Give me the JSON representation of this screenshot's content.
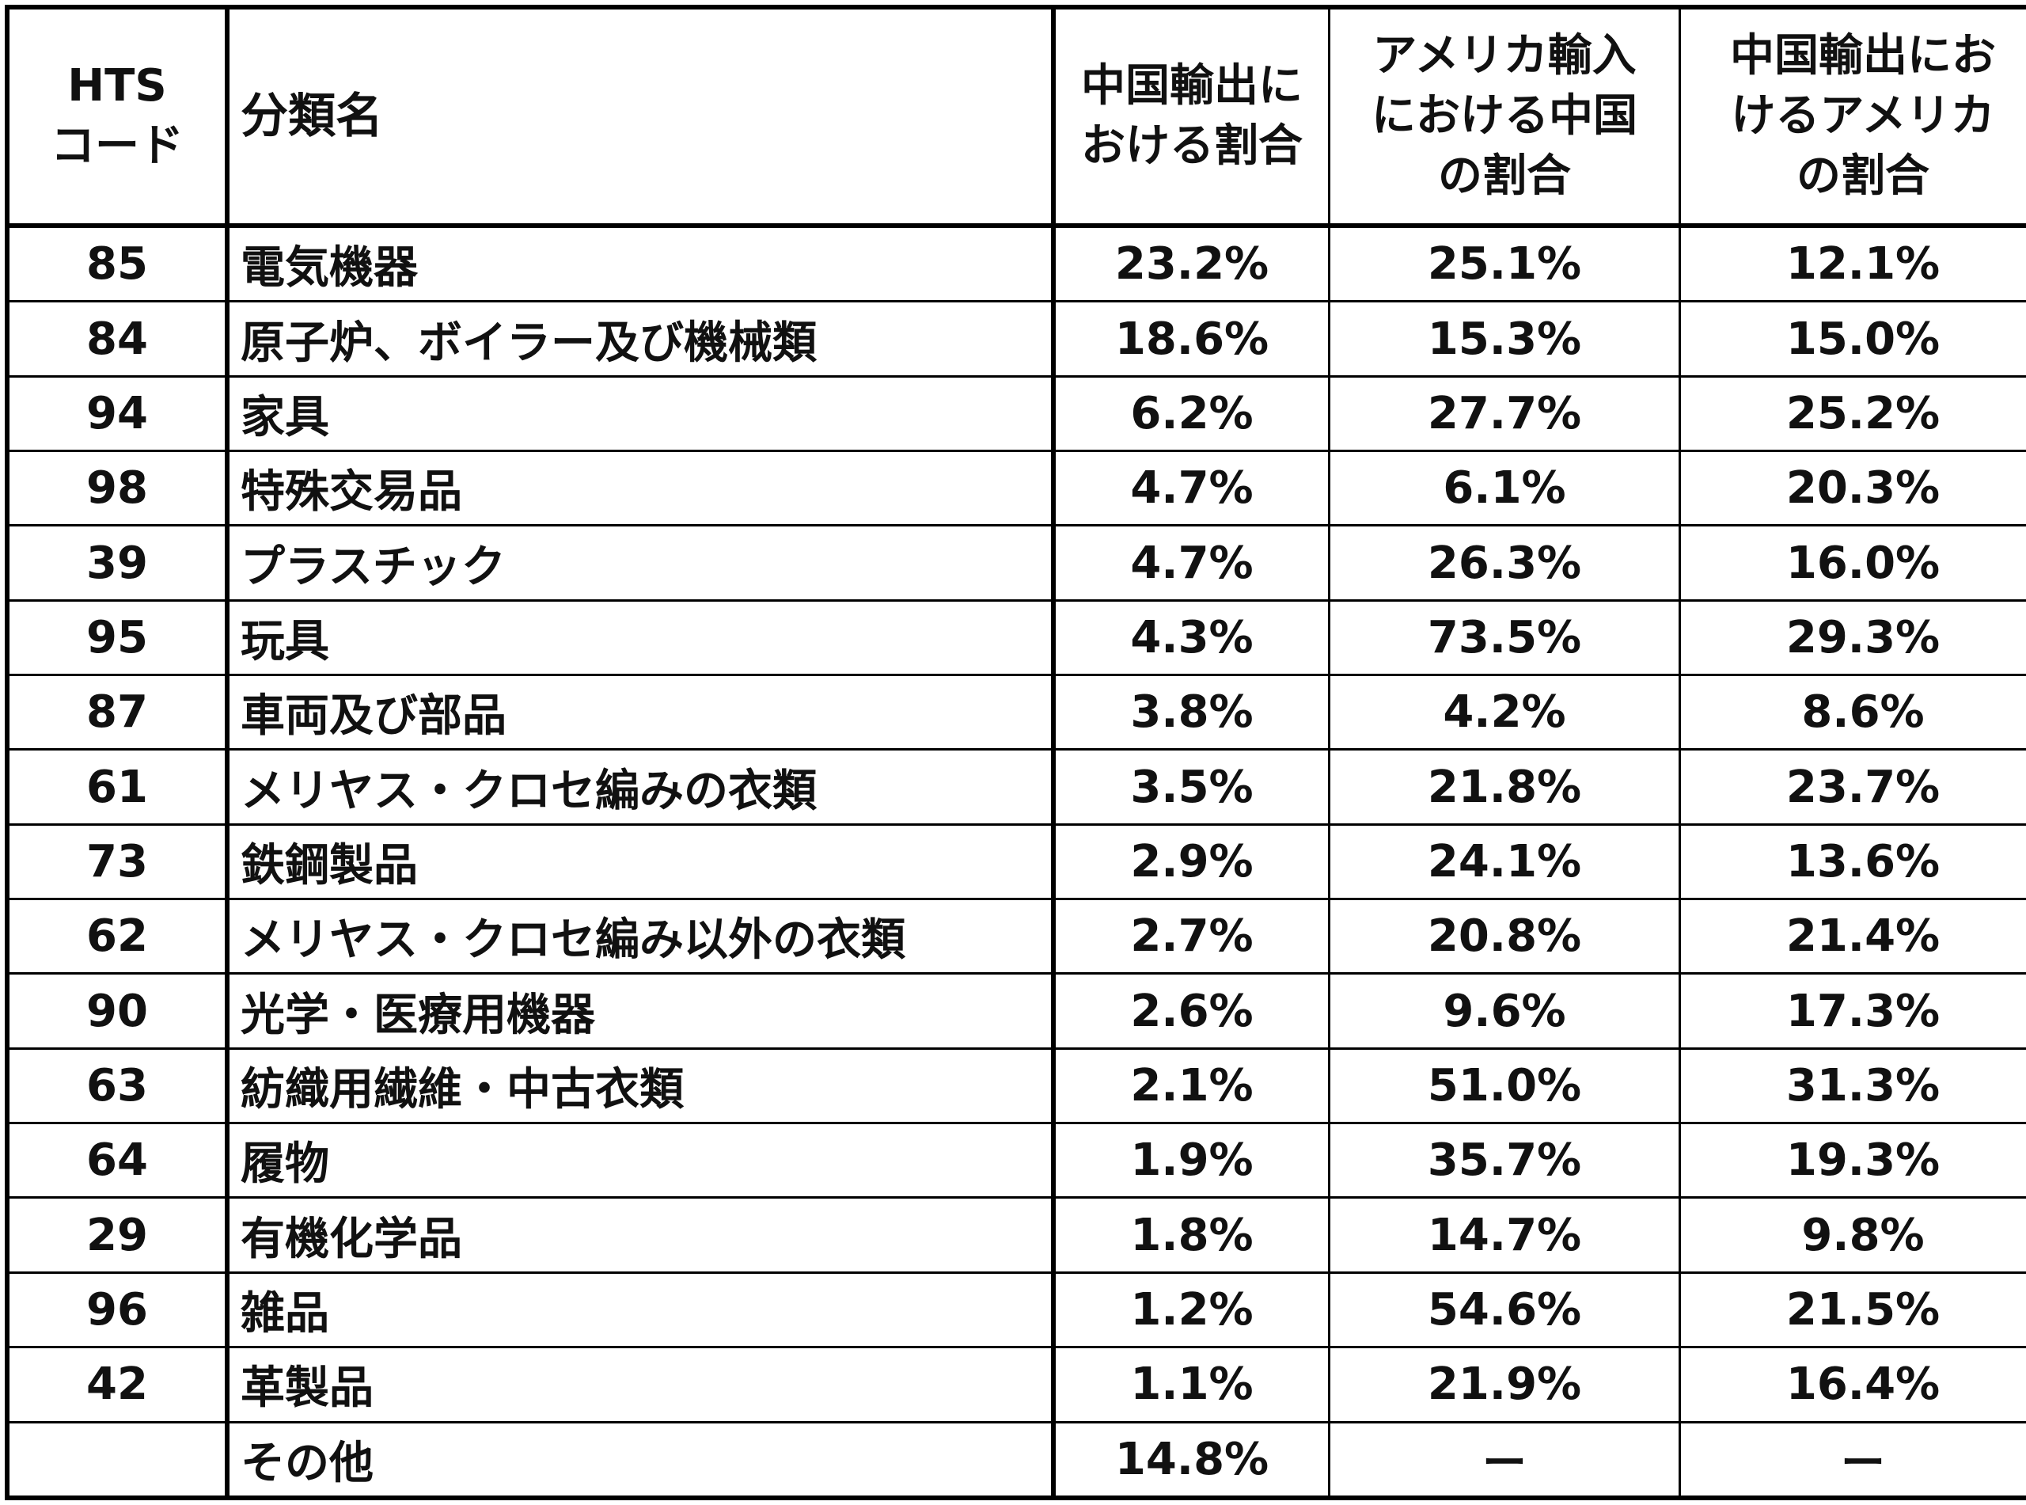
{
  "headers": {
    "code": [
      "HTS",
      "コード"
    ],
    "name": "分類名",
    "col3": [
      "中国輸出に",
      "おける割合"
    ],
    "col4": [
      "アメリカ輸入",
      "における中国",
      "の割合"
    ],
    "col5": [
      "中国輸出にお",
      "けるアメリカ",
      "の割合"
    ]
  },
  "rows": [
    {
      "code": "85",
      "name": "電気機器",
      "c3": "23.2%",
      "c4": "25.1%",
      "c5": "12.1%"
    },
    {
      "code": "84",
      "name": "原子炉、ボイラー及び機械類",
      "c3": "18.6%",
      "c4": "15.3%",
      "c5": "15.0%"
    },
    {
      "code": "94",
      "name": "家具",
      "c3": "6.2%",
      "c4": "27.7%",
      "c5": "25.2%"
    },
    {
      "code": "98",
      "name": "特殊交易品",
      "c3": "4.7%",
      "c4": "6.1%",
      "c5": "20.3%"
    },
    {
      "code": "39",
      "name": "プラスチック",
      "c3": "4.7%",
      "c4": "26.3%",
      "c5": "16.0%"
    },
    {
      "code": "95",
      "name": "玩具",
      "c3": "4.3%",
      "c4": "73.5%",
      "c5": "29.3%"
    },
    {
      "code": "87",
      "name": "車両及び部品",
      "c3": "3.8%",
      "c4": "4.2%",
      "c5": "8.6%"
    },
    {
      "code": "61",
      "name": "メリヤス・クロセ編みの衣類",
      "c3": "3.5%",
      "c4": "21.8%",
      "c5": "23.7%"
    },
    {
      "code": "73",
      "name": "鉄鋼製品",
      "c3": "2.9%",
      "c4": "24.1%",
      "c5": "13.6%"
    },
    {
      "code": "62",
      "name": "メリヤス・クロセ編み以外の衣類",
      "c3": "2.7%",
      "c4": "20.8%",
      "c5": "21.4%"
    },
    {
      "code": "90",
      "name": "光学・医療用機器",
      "c3": "2.6%",
      "c4": "9.6%",
      "c5": "17.3%"
    },
    {
      "code": "63",
      "name": "紡織用繊維・中古衣類",
      "c3": "2.1%",
      "c4": "51.0%",
      "c5": "31.3%"
    },
    {
      "code": "64",
      "name": "履物",
      "c3": "1.9%",
      "c4": "35.7%",
      "c5": "19.3%"
    },
    {
      "code": "29",
      "name": "有機化学品",
      "c3": "1.8%",
      "c4": "14.7%",
      "c5": "9.8%"
    },
    {
      "code": "96",
      "name": "雑品",
      "c3": "1.2%",
      "c4": "54.6%",
      "c5": "21.5%"
    },
    {
      "code": "42",
      "name": "革製品",
      "c3": "1.1%",
      "c4": "21.9%",
      "c5": "16.4%"
    },
    {
      "code": "",
      "name": "その他",
      "c3": "14.8%",
      "c4": "ー",
      "c5": "ー"
    }
  ]
}
